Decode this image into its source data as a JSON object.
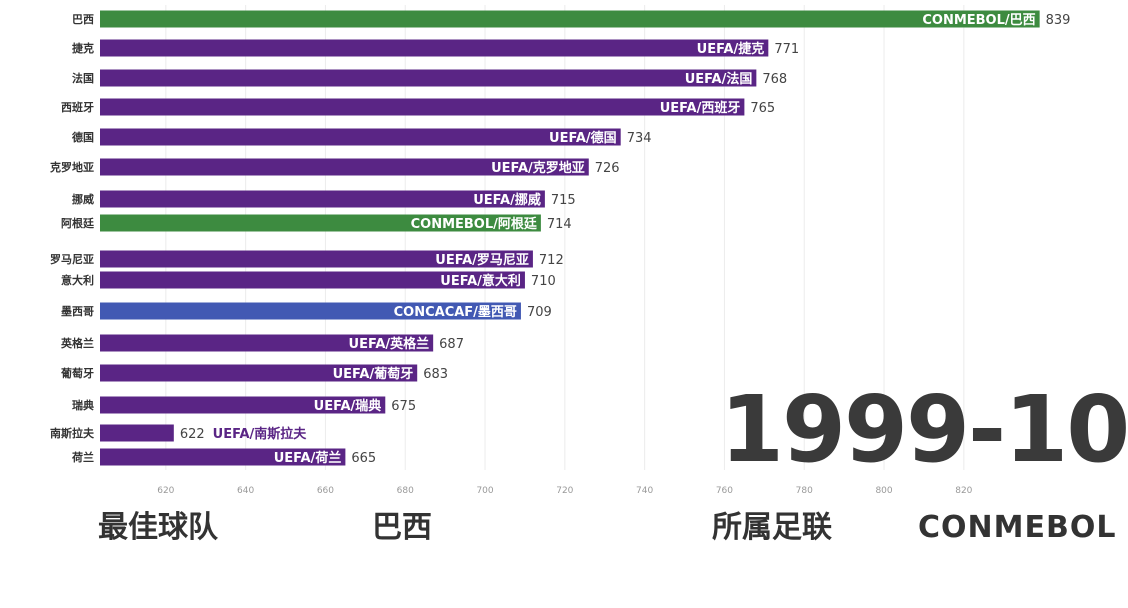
{
  "chart_data": {
    "type": "bar",
    "orientation": "horizontal",
    "title": "",
    "date": "1999-10",
    "xlim": [
      603.5,
      860
    ],
    "xticks": [
      620,
      640,
      660,
      680,
      700,
      720,
      740,
      760,
      780,
      800,
      820
    ],
    "grid": true,
    "categories": [
      "巴西",
      "捷克",
      "法国",
      "西班牙",
      "德国",
      "克罗地亚",
      "挪威",
      "阿根廷",
      "罗马尼亚",
      "意大利",
      "墨西哥",
      "英格兰",
      "葡萄牙",
      "瑞典",
      "南斯拉夫",
      "荷兰"
    ],
    "confederations": [
      "CONMEBOL",
      "UEFA",
      "UEFA",
      "UEFA",
      "UEFA",
      "UEFA",
      "UEFA",
      "CONMEBOL",
      "UEFA",
      "UEFA",
      "CONCACAF",
      "UEFA",
      "UEFA",
      "UEFA",
      "UEFA",
      "UEFA"
    ],
    "bar_labels": [
      "CONMEBOL/巴西",
      "UEFA/捷克",
      "UEFA/法国",
      "UEFA/西班牙",
      "UEFA/德国",
      "UEFA/克罗地亚",
      "UEFA/挪威",
      "CONMEBOL/阿根廷",
      "UEFA/罗马尼亚",
      "UEFA/意大利",
      "CONCACAF/墨西哥",
      "UEFA/英格兰",
      "UEFA/葡萄牙",
      "UEFA/瑞典",
      "UEFA/南斯拉夫",
      "UEFA/荷兰"
    ],
    "values": [
      839,
      771,
      768,
      765,
      734,
      726,
      715,
      714,
      712,
      710,
      709,
      687,
      683,
      675,
      622,
      665
    ]
  },
  "colors": {
    "CONMEBOL": "#3d8b40",
    "UEFA": "#5a2585",
    "CONCACAF": "#4259b3"
  },
  "footer": {
    "best_team_label": "最佳球队",
    "best_team": "巴西",
    "confed_label": "所属足联",
    "confed": "CONMEBOL"
  }
}
